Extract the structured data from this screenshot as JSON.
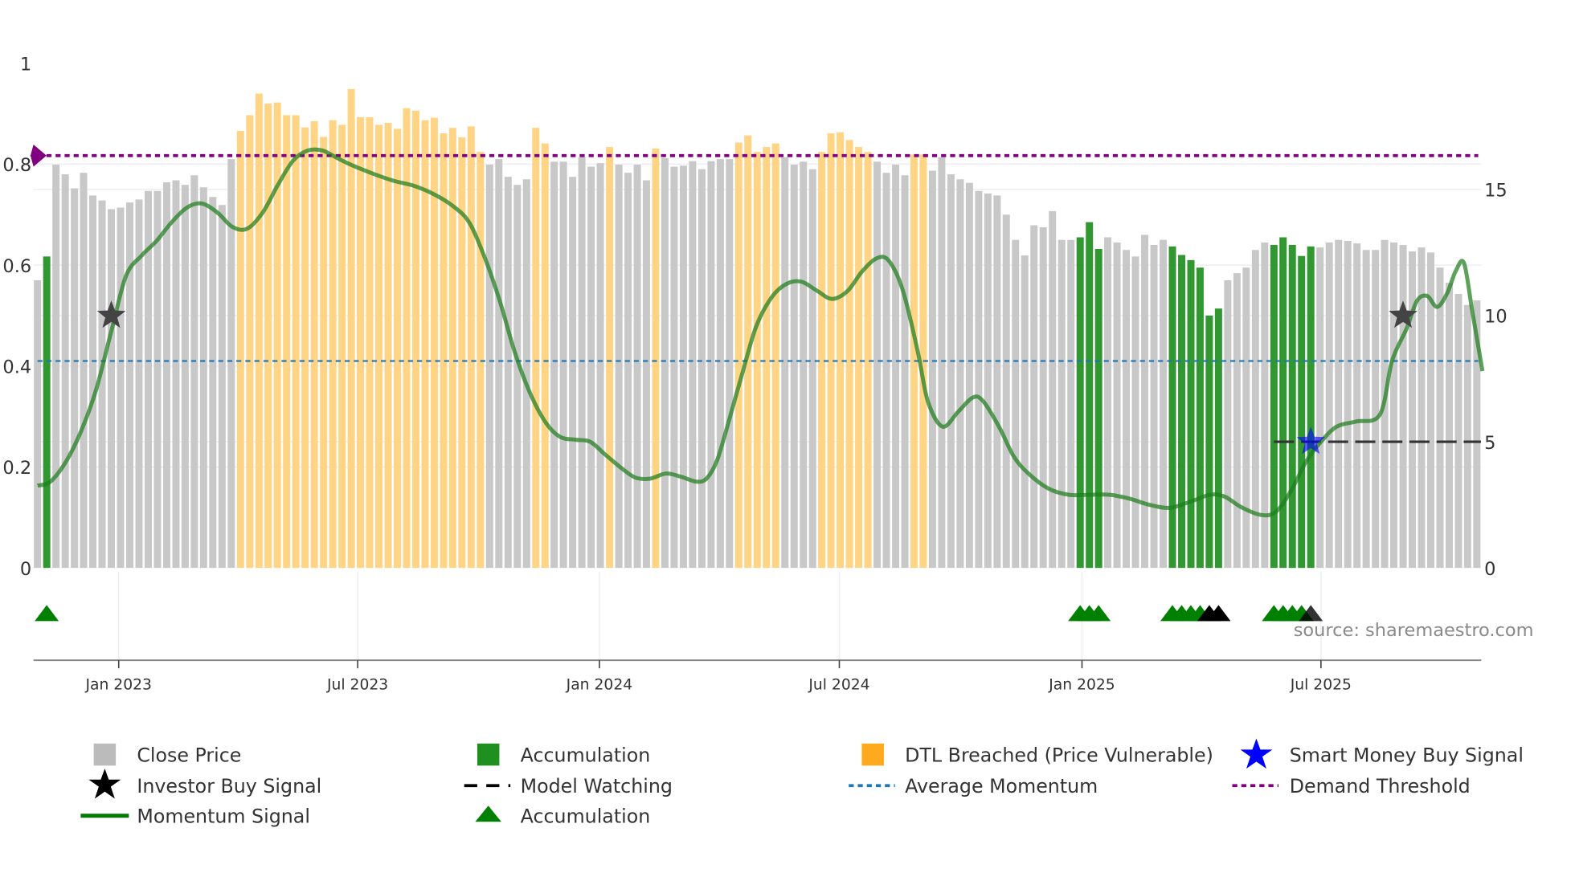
{
  "chart_data": {
    "type": "bar",
    "title": "",
    "xlabel": "",
    "ylabel": "",
    "ylim": [
      0,
      1
    ],
    "y2lim": [
      0,
      20
    ],
    "grid": true,
    "legend_position": "bottom",
    "yticks": [
      {
        "label": "0",
        "value": 0
      },
      {
        "label": "0.2",
        "value": 0.2
      },
      {
        "label": "0.4",
        "value": 0.4
      },
      {
        "label": "0.6",
        "value": 0.6
      },
      {
        "label": "0.8",
        "value": 0.8
      },
      {
        "label": "1",
        "value": 1
      }
    ],
    "y2ticks": [
      {
        "label": "0",
        "value": 0
      },
      {
        "label": "5",
        "value": 5
      },
      {
        "label": "10",
        "value": 10
      },
      {
        "label": "15",
        "value": 15
      }
    ],
    "xticks": [
      {
        "label": "Jan 2023",
        "week": 8.8
      },
      {
        "label": "Jul 2023",
        "week": 34.7
      },
      {
        "label": "Jan 2024",
        "week": 60.9
      },
      {
        "label": "Jul 2024",
        "week": 86.9
      },
      {
        "label": "Jan 2025",
        "week": 113.2
      },
      {
        "label": "Jul 2025",
        "week": 139.1
      }
    ],
    "bar_state_runs": [
      [
        "close",
        1
      ],
      [
        "accumulation",
        1
      ],
      [
        "close",
        20
      ],
      [
        "dtl",
        27
      ],
      [
        "close",
        5
      ],
      [
        "dtl",
        2
      ],
      [
        "close",
        6
      ],
      [
        "dtl",
        1
      ],
      [
        "close",
        4
      ],
      [
        "dtl",
        1
      ],
      [
        "close",
        8
      ],
      [
        "dtl",
        5
      ],
      [
        "close",
        4
      ],
      [
        "dtl",
        6
      ],
      [
        "close",
        4
      ],
      [
        "dtl",
        2
      ],
      [
        "close",
        16
      ],
      [
        "accumulation",
        3
      ],
      [
        "close",
        7
      ],
      [
        "accumulation",
        6
      ],
      [
        "close",
        5
      ],
      [
        "accumulation",
        5
      ],
      [
        "close",
        18
      ]
    ],
    "close_values": [
      0.57,
      0.617,
      0.799,
      0.78,
      0.752,
      0.783,
      0.738,
      0.728,
      0.711,
      0.714,
      0.724,
      0.73,
      0.747,
      0.747,
      0.764,
      0.768,
      0.759,
      0.778,
      0.754,
      0.735,
      0.719,
      0.81,
      0.866,
      0.897,
      0.94,
      0.92,
      0.922,
      0.897,
      0.897,
      0.873,
      0.885,
      0.854,
      0.887,
      0.878,
      0.949,
      0.893,
      0.893,
      0.878,
      0.882,
      0.87,
      0.911,
      0.906,
      0.887,
      0.892,
      0.861,
      0.872,
      0.853,
      0.875,
      0.824,
      0.799,
      0.81,
      0.775,
      0.759,
      0.77,
      0.872,
      0.841,
      0.805,
      0.805,
      0.775,
      0.814,
      0.795,
      0.802,
      0.834,
      0.799,
      0.783,
      0.799,
      0.768,
      0.831,
      0.812,
      0.795,
      0.797,
      0.806,
      0.79,
      0.806,
      0.81,
      0.81,
      0.843,
      0.857,
      0.824,
      0.834,
      0.841,
      0.814,
      0.799,
      0.805,
      0.79,
      0.824,
      0.861,
      0.863,
      0.848,
      0.834,
      0.824,
      0.805,
      0.783,
      0.799,
      0.778,
      0.819,
      0.819,
      0.787,
      0.814,
      0.78,
      0.77,
      0.763,
      0.747,
      0.742,
      0.738,
      0.7,
      0.65,
      0.619,
      0.679,
      0.675,
      0.707,
      0.65,
      0.65,
      0.655,
      0.685,
      0.632,
      0.655,
      0.645,
      0.63,
      0.617,
      0.66,
      0.64,
      0.65,
      0.637,
      0.62,
      0.61,
      0.595,
      0.5,
      0.514,
      0.57,
      0.584,
      0.595,
      0.63,
      0.645,
      0.64,
      0.655,
      0.64,
      0.618,
      0.637,
      0.635,
      0.645,
      0.65,
      0.648,
      0.643,
      0.63,
      0.63,
      0.65,
      0.645,
      0.64,
      0.627,
      0.635,
      0.625,
      0.595,
      0.565,
      0.543,
      0.521,
      0.53
    ],
    "momentum_signal": [
      [
        0,
        0.163
      ],
      [
        1.4,
        0.171
      ],
      [
        3.1,
        0.211
      ],
      [
        4.7,
        0.27
      ],
      [
        6.3,
        0.35
      ],
      [
        8.0,
        0.469
      ],
      [
        9.6,
        0.579
      ],
      [
        11.3,
        0.619
      ],
      [
        12.9,
        0.648
      ],
      [
        14.5,
        0.684
      ],
      [
        16.2,
        0.714
      ],
      [
        17.8,
        0.722
      ],
      [
        19.5,
        0.704
      ],
      [
        21.1,
        0.676
      ],
      [
        22.7,
        0.672
      ],
      [
        24.4,
        0.704
      ],
      [
        26.0,
        0.757
      ],
      [
        27.7,
        0.807
      ],
      [
        29.3,
        0.827
      ],
      [
        30.9,
        0.827
      ],
      [
        32.6,
        0.811
      ],
      [
        34.2,
        0.797
      ],
      [
        36.4,
        0.781
      ],
      [
        38.6,
        0.767
      ],
      [
        40.8,
        0.757
      ],
      [
        43.0,
        0.74
      ],
      [
        45.1,
        0.716
      ],
      [
        46.8,
        0.684
      ],
      [
        48.4,
        0.618
      ],
      [
        50.1,
        0.529
      ],
      [
        51.7,
        0.429
      ],
      [
        53.3,
        0.35
      ],
      [
        55.0,
        0.29
      ],
      [
        56.6,
        0.26
      ],
      [
        58.3,
        0.254
      ],
      [
        59.9,
        0.25
      ],
      [
        61.5,
        0.225
      ],
      [
        63.2,
        0.199
      ],
      [
        64.8,
        0.179
      ],
      [
        66.4,
        0.177
      ],
      [
        68.1,
        0.187
      ],
      [
        69.7,
        0.181
      ],
      [
        71.4,
        0.171
      ],
      [
        72.5,
        0.177
      ],
      [
        73.6,
        0.211
      ],
      [
        74.6,
        0.27
      ],
      [
        76.3,
        0.38
      ],
      [
        77.9,
        0.479
      ],
      [
        79.6,
        0.537
      ],
      [
        81.2,
        0.563
      ],
      [
        82.8,
        0.567
      ],
      [
        84.5,
        0.549
      ],
      [
        86.1,
        0.533
      ],
      [
        87.8,
        0.549
      ],
      [
        89.4,
        0.588
      ],
      [
        91.0,
        0.614
      ],
      [
        92.3,
        0.608
      ],
      [
        93.8,
        0.549
      ],
      [
        95.4,
        0.429
      ],
      [
        96.5,
        0.33
      ],
      [
        98.1,
        0.28
      ],
      [
        99.8,
        0.31
      ],
      [
        101.4,
        0.338
      ],
      [
        102.5,
        0.33
      ],
      [
        104.2,
        0.28
      ],
      [
        105.8,
        0.221
      ],
      [
        107.4,
        0.187
      ],
      [
        109.6,
        0.157
      ],
      [
        111.8,
        0.145
      ],
      [
        114.0,
        0.145
      ],
      [
        116.2,
        0.145
      ],
      [
        118.4,
        0.137
      ],
      [
        120.5,
        0.125
      ],
      [
        122.7,
        0.119
      ],
      [
        124.9,
        0.131
      ],
      [
        127.1,
        0.145
      ],
      [
        128.7,
        0.141
      ],
      [
        130.4,
        0.121
      ],
      [
        132.6,
        0.105
      ],
      [
        134.2,
        0.111
      ],
      [
        135.8,
        0.151
      ],
      [
        137.5,
        0.211
      ],
      [
        139.1,
        0.25
      ],
      [
        140.8,
        0.28
      ],
      [
        142.9,
        0.29
      ],
      [
        145.5,
        0.304
      ],
      [
        146.8,
        0.41
      ],
      [
        148.4,
        0.475
      ],
      [
        149.5,
        0.529
      ],
      [
        150.6,
        0.539
      ],
      [
        151.7,
        0.517
      ],
      [
        152.8,
        0.545
      ],
      [
        153.7,
        0.588
      ],
      [
        154.6,
        0.604
      ],
      [
        155.5,
        0.509
      ],
      [
        156.6,
        0.39
      ]
    ],
    "average_momentum": 0.41,
    "demand_threshold": 0.817,
    "model_watching": {
      "y2_value": 5,
      "from_week": 134,
      "to_week": 156
    },
    "investor_buy_signals": [
      {
        "week": 8,
        "value": 0.5
      },
      {
        "week": 148,
        "value": 0.5
      }
    ],
    "smart_money_buy_signals": [
      {
        "week": 138,
        "y2_value": 5
      }
    ],
    "accumulation_markers": [
      {
        "week": 1,
        "color": "green"
      },
      {
        "week": 113,
        "color": "green"
      },
      {
        "week": 114,
        "color": "green"
      },
      {
        "week": 115,
        "color": "green"
      },
      {
        "week": 123,
        "color": "green"
      },
      {
        "week": 124,
        "color": "green"
      },
      {
        "week": 125,
        "color": "green"
      },
      {
        "week": 126,
        "color": "green"
      },
      {
        "week": 127,
        "color": "black"
      },
      {
        "week": 128,
        "color": "black"
      },
      {
        "week": 134,
        "color": "green"
      },
      {
        "week": 135,
        "color": "green"
      },
      {
        "week": 136,
        "color": "green"
      },
      {
        "week": 137,
        "color": "green"
      },
      {
        "week": 138,
        "color": "black"
      }
    ],
    "colors": {
      "close": "#c8c8c8",
      "accumulation": "#1f8f1f",
      "dtl": "#ffd485",
      "momentum": "#1e7d1e",
      "avg": "#1f77b4",
      "threshold": "#800080",
      "smart": "#0000ff"
    }
  },
  "source": "source: sharemaestro.com",
  "legend": {
    "close_price": "Close Price",
    "investor_buy": "Investor Buy Signal",
    "momentum": "Momentum Signal",
    "accumulation_bar": "Accumulation",
    "model_watching": "Model Watching",
    "accumulation_marker": "Accumulation",
    "dtl": "DTL Breached (Price Vulnerable)",
    "avg_momentum": "Average Momentum",
    "smart_money": "Smart Money Buy Signal",
    "demand_threshold": "Demand Threshold"
  }
}
